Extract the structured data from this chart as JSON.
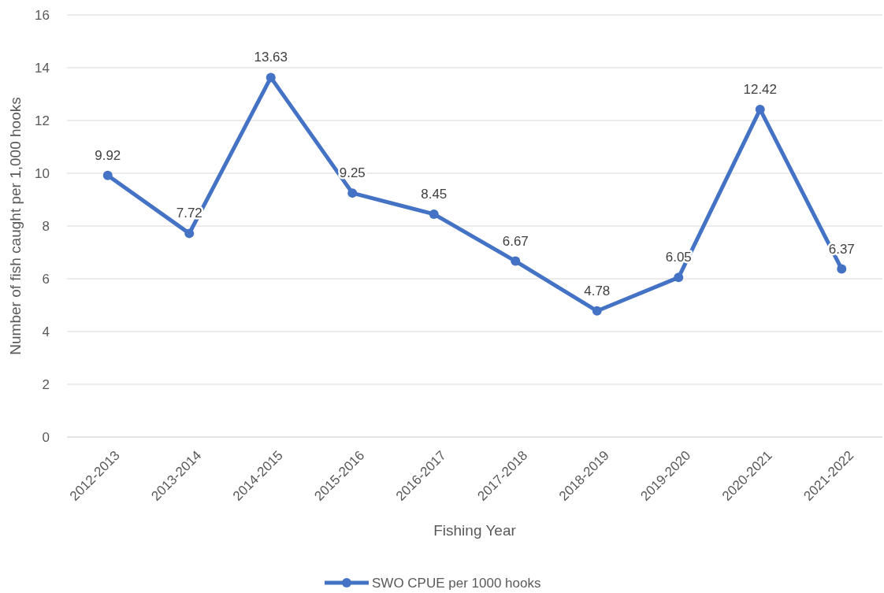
{
  "chart_data": {
    "type": "line",
    "xlabel": "Fishing Year",
    "ylabel": "Number of fish caught per 1,000 hooks",
    "categories": [
      "2012-2013",
      "2013-2014",
      "2014-2015",
      "2015-2016",
      "2016-2017",
      "2017-2018",
      "2018-2019",
      "2019-2020",
      "2020-2021",
      "2021-2022"
    ],
    "series": [
      {
        "name": "SWO CPUE per 1000 hooks",
        "color": "#4472c4",
        "values": [
          9.92,
          7.72,
          13.63,
          9.25,
          8.45,
          6.67,
          4.78,
          6.05,
          12.42,
          6.37
        ]
      }
    ],
    "ylim": [
      0,
      16
    ],
    "yticks": [
      0,
      2,
      4,
      6,
      8,
      10,
      12,
      14,
      16
    ],
    "grid": "y",
    "legend": "bottom",
    "marker": "circle",
    "line_style": "solid",
    "data_labels": true
  }
}
